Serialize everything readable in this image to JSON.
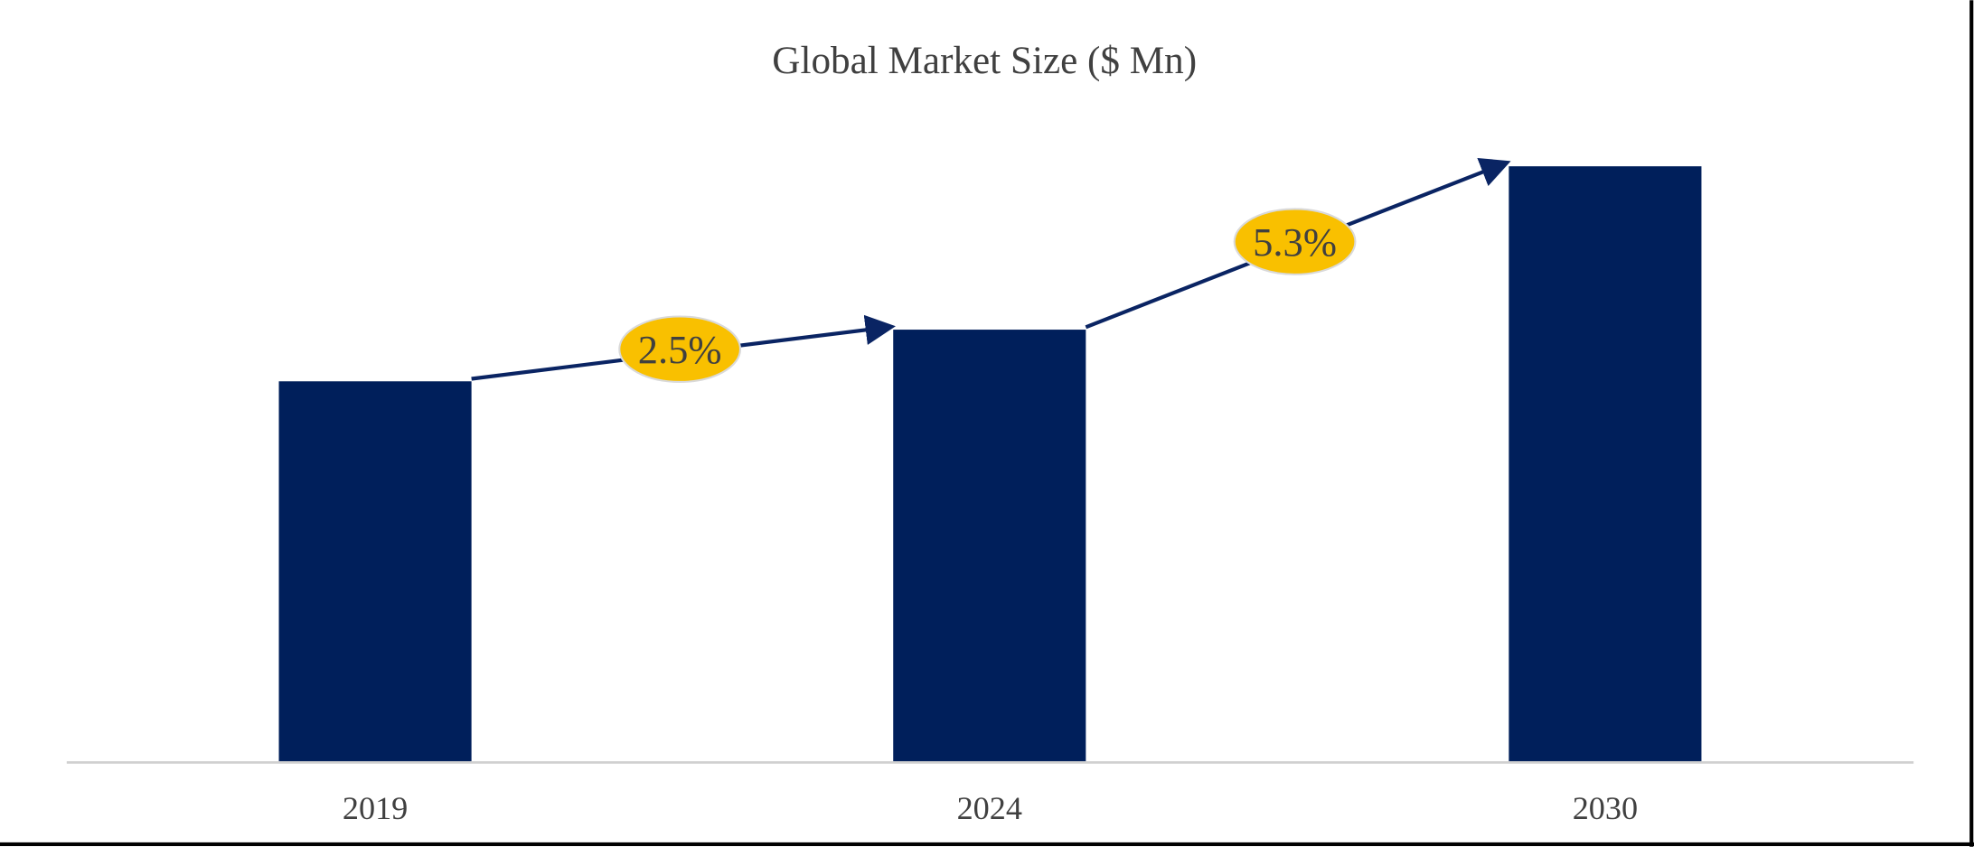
{
  "chart_data": {
    "type": "bar",
    "title": "Global Market Size ($ Mn)",
    "categories": [
      "2019",
      "2024",
      "2030"
    ],
    "values": [
      100,
      113.6,
      156.6
    ],
    "value_note": "relative bar heights (2019 = 100); no value axis printed",
    "xlabel": "",
    "ylabel": "",
    "ylim": [
      0,
      160
    ],
    "grid": false,
    "legend": "none",
    "bar_color": "#001f5b",
    "annotations": [
      {
        "from": "2019",
        "to": "2024",
        "label": "2.5%"
      },
      {
        "from": "2024",
        "to": "2030",
        "label": "5.3%"
      }
    ],
    "annotation_color": "#f9c000",
    "arrow_color": "#0a2463"
  }
}
